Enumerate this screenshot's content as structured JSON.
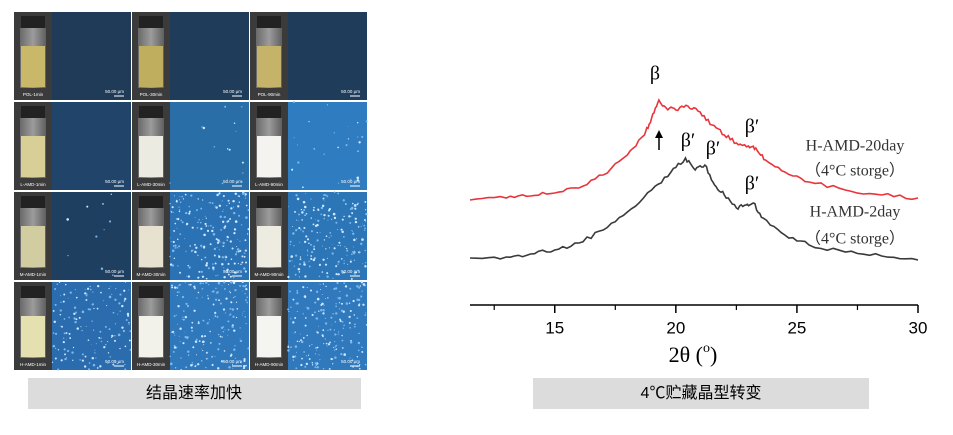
{
  "grid": {
    "rows": [
      {
        "cells": [
          {
            "label": "POL-1min",
            "scale": "50.00 μm"
          },
          {
            "label": "POL-30min",
            "scale": "50.00 μm"
          },
          {
            "label": "POL-90min",
            "scale": "50.00 μm"
          }
        ]
      },
      {
        "cells": [
          {
            "label": "L-AMD-1min",
            "scale": "50.00 μm"
          },
          {
            "label": "L-AMD-30min",
            "scale": "50.00 μm"
          },
          {
            "label": "L-AMD-90min",
            "scale": "50.00 μm"
          }
        ]
      },
      {
        "cells": [
          {
            "label": "M-AMD-1min",
            "scale": "50.00 μm"
          },
          {
            "label": "M-AMD-30min",
            "scale": "50.00 μm"
          },
          {
            "label": "M-AMD-90min",
            "scale": "50.00 μm"
          }
        ]
      },
      {
        "cells": [
          {
            "label": "H-AMD-1min",
            "scale": "50.00 μm"
          },
          {
            "label": "H-AMD-30min",
            "scale": "50.00 μm"
          },
          {
            "label": "H-AMD-90min",
            "scale": "50.00 μm"
          }
        ]
      }
    ]
  },
  "caption_left": "结晶速率加快",
  "caption_right": "4℃贮藏晶型转变",
  "chart_data": {
    "type": "line",
    "xlabel": "2θ (",
    "xlabel_sup": "o",
    "xlabel_end": ")",
    "xlim": [
      11.5,
      30
    ],
    "xticks": [
      15,
      20,
      25,
      30
    ],
    "xminor_ticks": [
      12.5,
      17.5,
      22.5,
      27.5
    ],
    "ylim": [
      0,
      245
    ],
    "annotations": [
      "β",
      "β′",
      "β′",
      "β′",
      "β′"
    ],
    "series": [
      {
        "name": "H-AMD-20day",
        "note": "（4°C storge）",
        "color": "#e8343a",
        "x": [
          11.5,
          13,
          14,
          15,
          16,
          17,
          18,
          18.7,
          19,
          19.3,
          19.6,
          20,
          20.5,
          21,
          21.5,
          22,
          22.5,
          23,
          23.3,
          23.7,
          24.5,
          25.5,
          27,
          28.5,
          30
        ],
        "values": [
          105,
          107,
          109,
          112,
          117,
          130,
          150,
          170,
          187,
          205,
          197,
          195,
          199,
          193,
          180,
          170,
          162,
          159,
          157,
          145,
          133,
          123,
          115,
          110,
          107
        ]
      },
      {
        "name": "H-AMD-2day",
        "note": "（4°C storge）",
        "color": "#3a3a3a",
        "x": [
          11.5,
          13,
          14,
          15,
          16,
          17,
          18,
          19,
          19.8,
          20.4,
          20.8,
          21.2,
          21.6,
          22,
          22.5,
          22.9,
          23.2,
          23.6,
          24.5,
          25.5,
          27,
          28.5,
          30
        ],
        "values": [
          47,
          48,
          51,
          55,
          62,
          75,
          93,
          115,
          133,
          147,
          135,
          140,
          120,
          110,
          97,
          100,
          102,
          87,
          70,
          60,
          53,
          49,
          45
        ]
      }
    ]
  }
}
